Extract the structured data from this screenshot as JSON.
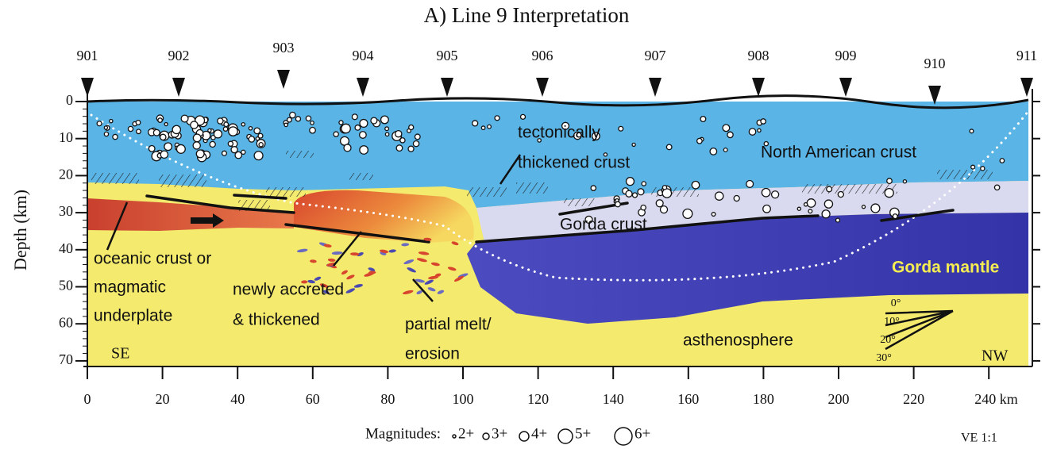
{
  "title": "A) Line 9 Interpretation",
  "stations": [
    "901",
    "902",
    "903",
    "904",
    "905",
    "906",
    "907",
    "908",
    "909",
    "910",
    "911"
  ],
  "depth_axis": {
    "label": "Depth (km)",
    "ticks": [
      "0",
      "10",
      "20",
      "30",
      "40",
      "50",
      "60",
      "70"
    ]
  },
  "distance_axis": {
    "ticks": [
      "0",
      "20",
      "40",
      "60",
      "80",
      "100",
      "120",
      "140",
      "160",
      "180",
      "200",
      "220",
      "240 km"
    ]
  },
  "annotations": [
    {
      "lines": [
        "tectonically",
        "thickened crust"
      ]
    },
    {
      "lines": [
        "North American crust"
      ]
    },
    {
      "lines": [
        "Gorda crust"
      ]
    },
    {
      "lines": [
        "Gorda mantle"
      ]
    },
    {
      "lines": [
        "asthenosphere"
      ]
    },
    {
      "lines": [
        "oceanic crust or",
        "magmatic",
        "underplate"
      ]
    },
    {
      "lines": [
        "newly accreted",
        "& thickened"
      ]
    },
    {
      "lines": [
        "partial melt/",
        "erosion"
      ]
    }
  ],
  "orientation": [
    "SE",
    "NW"
  ],
  "dip_scale": [
    "0°",
    "10°",
    "20°",
    "30°"
  ],
  "legend": {
    "label": "Magnitudes:",
    "items": [
      "2+",
      "3+",
      "4+",
      "5+",
      "6+"
    ]
  },
  "ve": "VE 1:1"
}
